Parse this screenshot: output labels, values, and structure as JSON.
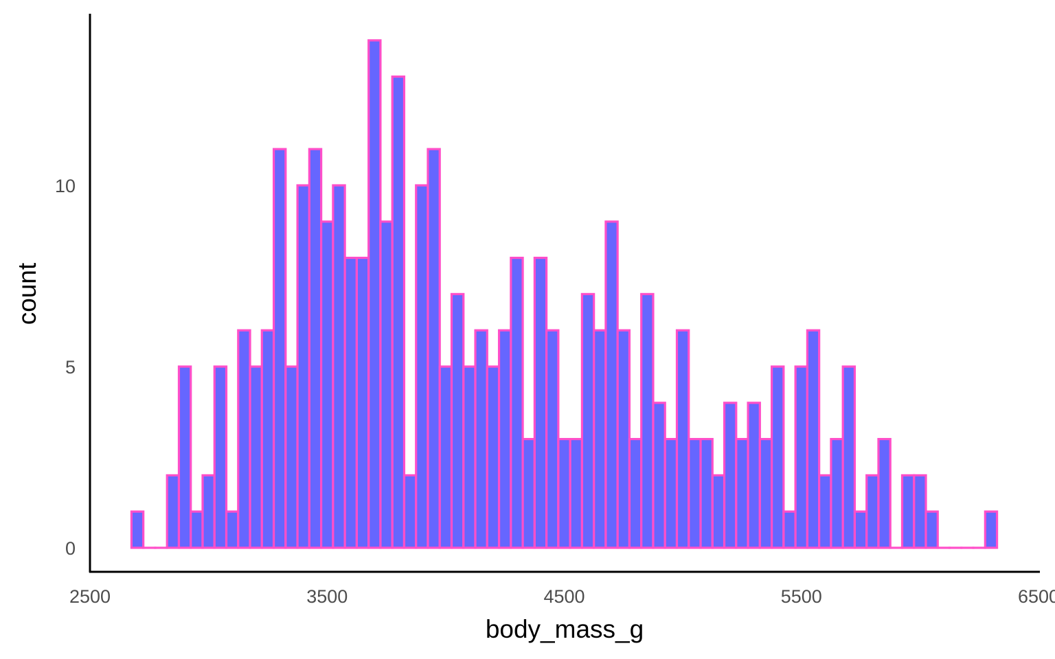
{
  "chart_data": {
    "type": "bar",
    "xlabel": "body_mass_g",
    "ylabel": "count",
    "xlim": [
      2500,
      6500
    ],
    "ylim": [
      0,
      14
    ],
    "x_ticks": [
      2500,
      3500,
      4500,
      5500,
      6500
    ],
    "x_tick_labels": [
      "2500",
      "3500",
      "4500",
      "5500",
      "6500"
    ],
    "y_ticks": [
      0,
      5,
      10
    ],
    "y_tick_labels": [
      "0",
      "5",
      "10"
    ],
    "bin_width": 50,
    "bins_start": 2675,
    "values": [
      1,
      0,
      0,
      2,
      5,
      1,
      2,
      5,
      1,
      6,
      5,
      6,
      11,
      5,
      10,
      11,
      9,
      10,
      8,
      8,
      14,
      9,
      13,
      2,
      10,
      11,
      5,
      7,
      5,
      6,
      5,
      6,
      8,
      3,
      8,
      6,
      3,
      3,
      7,
      6,
      9,
      6,
      3,
      7,
      4,
      3,
      6,
      3,
      3,
      2,
      4,
      3,
      4,
      3,
      5,
      1,
      5,
      6,
      2,
      3,
      5,
      1,
      2,
      3,
      0,
      2,
      2,
      1,
      0,
      0,
      0,
      0,
      1
    ],
    "grid": false,
    "colors": {
      "bar_fill": "#6666ff",
      "bar_outline": "#ff4fc9",
      "axis_line": "#000000",
      "tick_text": "#4d4d4d"
    }
  }
}
